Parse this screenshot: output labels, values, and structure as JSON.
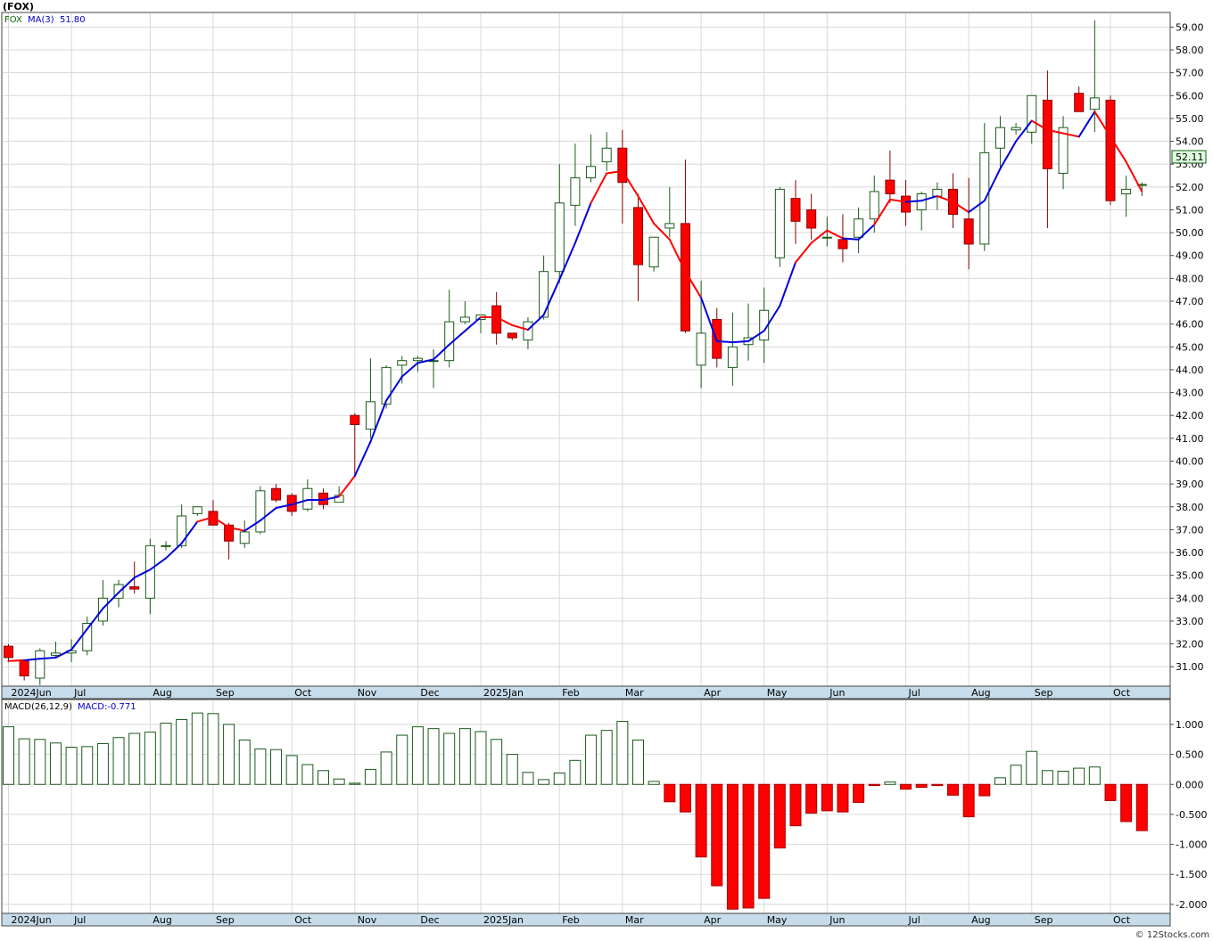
{
  "header": {
    "symbol_title": "(FOX)"
  },
  "legend_price": {
    "ticker": "FOX",
    "ma_label": "MA(3)",
    "ma_value": "51.80"
  },
  "legend_macd": {
    "label": "MACD(26,12,9)",
    "value_label": "MACD:-0.771"
  },
  "last_price_label": "52.11",
  "credit": "© 12Stocks.com",
  "colors": {
    "up_body": "#ffffff",
    "up_edge": "#1a5a1a",
    "down_body": "#ff0000",
    "down_edge": "#880000",
    "ma_up": "#0000dd",
    "ma_down": "#ff0000",
    "axis_band": "#c6dcea",
    "grid": "#d8d8d8",
    "macd_pos": "#1a5a1a",
    "macd_neg": "#ff0000",
    "last_badge": "#ddffdd"
  },
  "chart_data": [
    {
      "type": "candlestick",
      "title": "(FOX)",
      "interval": "weekly",
      "ylim": [
        30.15,
        59.6
      ],
      "y_ticks": [
        "31.00",
        "32.00",
        "33.00",
        "34.00",
        "35.00",
        "36.00",
        "37.00",
        "38.00",
        "39.00",
        "40.00",
        "41.00",
        "42.00",
        "43.00",
        "44.00",
        "45.00",
        "46.00",
        "47.00",
        "48.00",
        "49.00",
        "50.00",
        "51.00",
        "52.00",
        "53.00",
        "54.00",
        "55.00",
        "56.00",
        "57.00",
        "58.00",
        "59.00"
      ],
      "month_labels": [
        "2024Jun",
        "Jul",
        "Aug",
        "Sep",
        "Oct",
        "Nov",
        "Dec",
        "2025Jan",
        "Feb",
        "Mar",
        "Apr",
        "May",
        "Jun",
        "Jul",
        "Aug",
        "Sep",
        "Oct"
      ],
      "month_label_week_index": [
        0,
        4,
        9,
        13,
        18,
        22,
        26,
        30,
        35,
        39,
        44,
        48,
        52,
        57,
        61,
        65,
        70
      ],
      "ohlc": [
        [
          31.9,
          32.0,
          31.2,
          31.4
        ],
        [
          31.3,
          31.3,
          30.4,
          30.6
        ],
        [
          30.5,
          31.8,
          30.2,
          31.7
        ],
        [
          31.5,
          32.1,
          31.4,
          31.6
        ],
        [
          31.6,
          32.2,
          31.2,
          31.7
        ],
        [
          31.7,
          33.2,
          31.5,
          32.9
        ],
        [
          33.0,
          34.8,
          32.8,
          34.0
        ],
        [
          34.0,
          34.8,
          33.6,
          34.6
        ],
        [
          34.5,
          35.6,
          34.2,
          34.4
        ],
        [
          34.0,
          36.6,
          33.3,
          36.3
        ],
        [
          36.3,
          36.5,
          36.1,
          36.3
        ],
        [
          36.3,
          38.1,
          36.2,
          37.6
        ],
        [
          37.7,
          38.0,
          37.6,
          38.0
        ],
        [
          37.8,
          38.3,
          37.3,
          37.2
        ],
        [
          37.2,
          37.3,
          35.7,
          36.5
        ],
        [
          36.4,
          37.4,
          36.2,
          36.9
        ],
        [
          36.9,
          38.9,
          36.8,
          38.7
        ],
        [
          38.8,
          39.0,
          38.2,
          38.3
        ],
        [
          38.5,
          38.6,
          37.6,
          37.8
        ],
        [
          37.9,
          39.2,
          37.8,
          38.8
        ],
        [
          38.6,
          38.8,
          37.9,
          38.1
        ],
        [
          38.2,
          38.9,
          38.2,
          38.5
        ],
        [
          42.0,
          42.1,
          39.4,
          41.6
        ],
        [
          41.4,
          44.5,
          41.0,
          42.6
        ],
        [
          42.5,
          44.2,
          42.3,
          44.1
        ],
        [
          44.2,
          44.6,
          43.4,
          44.4
        ],
        [
          44.4,
          44.6,
          43.9,
          44.5
        ],
        [
          44.4,
          44.9,
          43.2,
          44.4
        ],
        [
          44.4,
          47.5,
          44.1,
          46.1
        ],
        [
          46.1,
          47.0,
          46.0,
          46.3
        ],
        [
          46.2,
          46.4,
          45.6,
          46.4
        ],
        [
          46.8,
          47.4,
          45.1,
          45.6
        ],
        [
          45.6,
          45.6,
          45.3,
          45.4
        ],
        [
          45.3,
          46.3,
          44.9,
          46.1
        ],
        [
          46.3,
          49.0,
          46.2,
          48.3
        ],
        [
          48.3,
          53.0,
          47.8,
          51.3
        ],
        [
          51.2,
          53.9,
          50.3,
          52.4
        ],
        [
          52.4,
          54.3,
          52.2,
          52.9
        ],
        [
          53.1,
          54.4,
          52.7,
          53.7
        ],
        [
          53.7,
          54.5,
          50.4,
          52.2
        ],
        [
          51.1,
          51.7,
          47.0,
          48.6
        ],
        [
          48.5,
          49.7,
          48.3,
          49.8
        ],
        [
          50.2,
          52.0,
          49.8,
          50.4
        ],
        [
          50.4,
          53.2,
          45.6,
          45.7
        ],
        [
          44.2,
          47.9,
          43.2,
          45.6
        ],
        [
          46.2,
          46.7,
          44.1,
          44.5
        ],
        [
          44.1,
          46.5,
          43.3,
          45.0
        ],
        [
          45.1,
          46.9,
          44.4,
          45.4
        ],
        [
          45.3,
          47.6,
          44.3,
          46.6
        ],
        [
          48.9,
          52.0,
          48.5,
          51.9
        ],
        [
          51.5,
          52.3,
          49.5,
          50.5
        ],
        [
          51.0,
          51.7,
          49.7,
          50.2
        ],
        [
          49.8,
          50.7,
          49.4,
          49.8
        ],
        [
          49.7,
          50.8,
          48.7,
          49.3
        ],
        [
          49.8,
          51.1,
          49.1,
          50.6
        ],
        [
          50.6,
          52.5,
          50.0,
          51.8
        ],
        [
          52.3,
          53.6,
          51.3,
          51.7
        ],
        [
          51.6,
          52.3,
          50.3,
          50.9
        ],
        [
          51.0,
          51.8,
          50.1,
          51.7
        ],
        [
          51.6,
          52.2,
          51.0,
          51.9
        ],
        [
          51.9,
          52.6,
          50.2,
          50.8
        ],
        [
          50.6,
          52.4,
          48.4,
          49.5
        ],
        [
          49.5,
          54.8,
          49.2,
          53.5
        ],
        [
          53.7,
          55.1,
          52.8,
          54.6
        ],
        [
          54.5,
          54.8,
          54.3,
          54.6
        ],
        [
          54.4,
          56.0,
          53.9,
          56.0
        ],
        [
          55.8,
          57.1,
          50.2,
          52.8
        ],
        [
          52.6,
          55.1,
          51.9,
          54.6
        ],
        [
          56.1,
          56.4,
          55.3,
          55.3
        ],
        [
          55.4,
          59.3,
          54.4,
          55.9
        ],
        [
          55.8,
          56.0,
          51.2,
          51.4
        ],
        [
          51.7,
          52.5,
          50.7,
          51.9
        ],
        [
          52.1,
          52.2,
          51.6,
          52.11
        ]
      ],
      "ma3": [
        31.25,
        31.28,
        31.35,
        31.4,
        31.75,
        32.65,
        33.55,
        34.25,
        34.9,
        35.25,
        35.75,
        36.4,
        37.35,
        37.55,
        37.1,
        36.95,
        37.4,
        37.95,
        38.1,
        38.3,
        38.3,
        38.45,
        39.35,
        40.85,
        42.65,
        43.7,
        44.3,
        44.45,
        45.1,
        45.7,
        46.3,
        46.3,
        45.95,
        45.75,
        46.4,
        47.95,
        49.55,
        51.3,
        52.6,
        52.7,
        51.6,
        50.4,
        49.7,
        48.3,
        47.15,
        45.25,
        45.2,
        45.25,
        45.7,
        46.8,
        48.7,
        49.55,
        50.1,
        49.75,
        49.7,
        50.35,
        51.45,
        51.35,
        51.4,
        51.6,
        51.35,
        50.9,
        51.4,
        52.8,
        54.0,
        54.9,
        54.5,
        54.35,
        54.2,
        55.3,
        54.2,
        53.1,
        51.8
      ],
      "ma3_down_segments": [
        [
          0,
          1
        ],
        [
          12,
          15
        ],
        [
          21,
          22
        ],
        [
          30,
          33
        ],
        [
          37,
          44
        ],
        [
          50,
          53
        ],
        [
          55,
          57
        ],
        [
          59,
          61
        ],
        [
          65,
          68
        ],
        [
          69,
          72
        ]
      ]
    },
    {
      "type": "bar",
      "title": "MACD(26,12,9)",
      "ylim": [
        -2.15,
        1.4
      ],
      "y_ticks": [
        "1.000",
        "0.500",
        "0.000",
        "-0.500",
        "-1.000",
        "-1.500",
        "-2.000"
      ],
      "values": [
        0.96,
        0.76,
        0.75,
        0.69,
        0.62,
        0.63,
        0.68,
        0.78,
        0.85,
        0.87,
        1.02,
        1.08,
        1.19,
        1.18,
        1.0,
        0.74,
        0.59,
        0.58,
        0.48,
        0.33,
        0.23,
        0.09,
        0.02,
        0.25,
        0.54,
        0.82,
        0.96,
        0.93,
        0.85,
        0.93,
        0.88,
        0.75,
        0.5,
        0.2,
        0.08,
        0.19,
        0.4,
        0.82,
        0.9,
        1.05,
        0.74,
        0.05,
        -0.29,
        -0.46,
        -1.21,
        -1.69,
        -2.08,
        -2.06,
        -1.9,
        -1.06,
        -0.69,
        -0.48,
        -0.44,
        -0.46,
        -0.3,
        -0.02,
        0.04,
        -0.08,
        -0.05,
        -0.02,
        -0.18,
        -0.54,
        -0.19,
        0.11,
        0.32,
        0.55,
        0.23,
        0.22,
        0.27,
        0.29,
        -0.27,
        -0.62,
        -0.771
      ],
      "last_value": -0.771
    }
  ]
}
